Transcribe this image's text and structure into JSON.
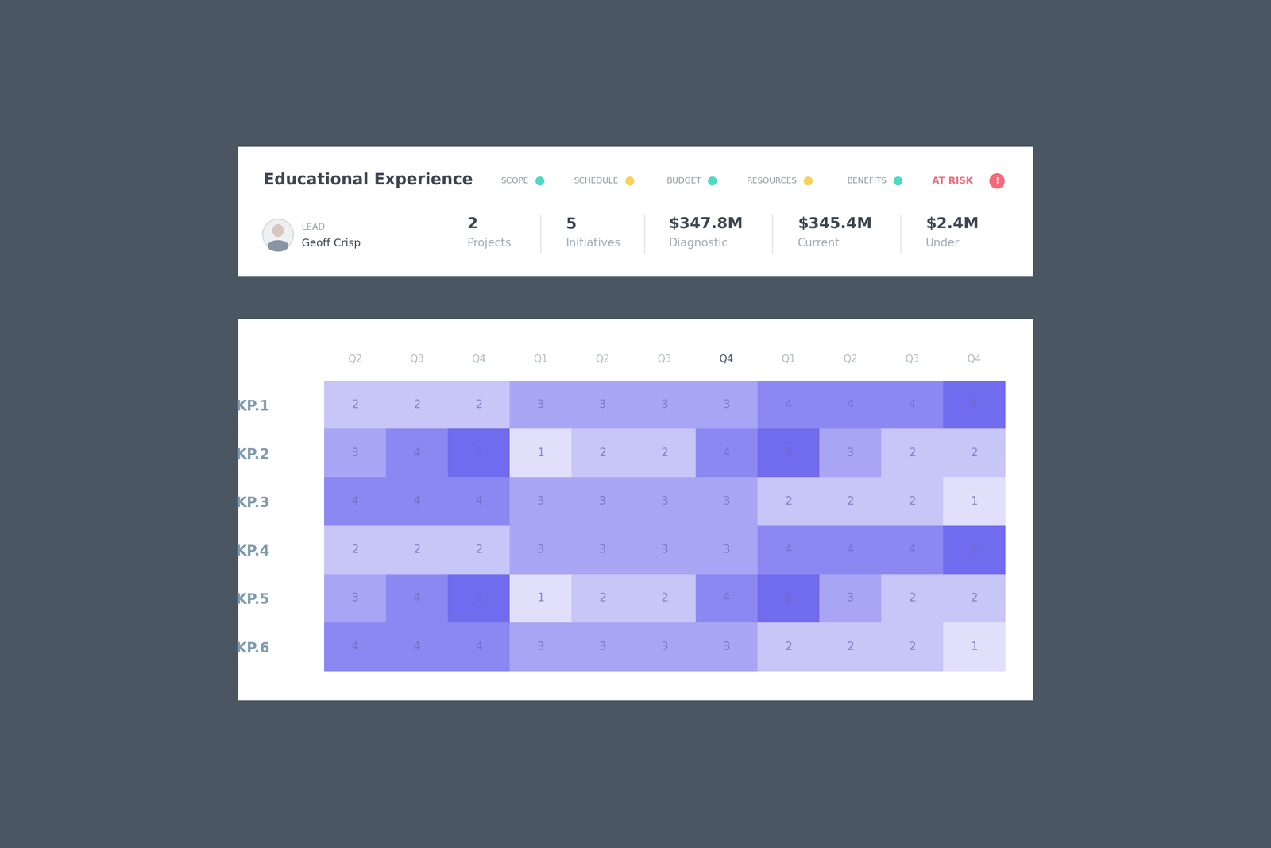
{
  "header": {
    "title": "Educational Experience",
    "status": [
      {
        "label": "SCOPE",
        "color": "#4dd9c5"
      },
      {
        "label": "SCHEDULE",
        "color": "#f8d15c"
      },
      {
        "label": "BUDGET",
        "color": "#4dd9c5"
      },
      {
        "label": "RESOURCES",
        "color": "#f8d15c"
      },
      {
        "label": "BENEFITS",
        "color": "#4dd9c5"
      }
    ],
    "risk": {
      "label": "AT RISK",
      "icon": "!",
      "color": "#f46a7a"
    },
    "lead": {
      "label": "LEAD",
      "name": "Geoff Crisp"
    },
    "stats": [
      {
        "value": 2,
        "label": "Projects"
      },
      {
        "value": 5,
        "label": "Initiatives"
      },
      {
        "value": "$347.8M",
        "label": "Diagnostic"
      },
      {
        "value": "$345.4M",
        "label": "Current"
      },
      {
        "value": "$2.4M",
        "label": "Under"
      }
    ]
  },
  "chart_data": {
    "type": "heatmap",
    "categories": [
      "Q2",
      "Q3",
      "Q4",
      "Q1",
      "Q2",
      "Q3",
      "Q4",
      "Q1",
      "Q2",
      "Q3",
      "Q4"
    ],
    "rows": [
      "KP.1",
      "KP.2",
      "KP.3",
      "KP.4",
      "KP.5",
      "KP.6"
    ],
    "cells": [
      [
        2,
        2,
        2,
        3,
        3,
        3,
        3,
        4,
        4,
        4,
        5
      ],
      [
        3,
        4,
        5,
        1,
        2,
        2,
        4,
        5,
        3,
        2,
        2
      ],
      [
        4,
        4,
        4,
        3,
        3,
        3,
        3,
        2,
        2,
        2,
        1
      ],
      [
        2,
        2,
        2,
        3,
        3,
        3,
        3,
        4,
        4,
        4,
        5
      ],
      [
        3,
        4,
        5,
        1,
        2,
        2,
        4,
        5,
        3,
        2,
        2
      ],
      [
        4,
        4,
        4,
        3,
        3,
        3,
        3,
        2,
        2,
        2,
        1
      ]
    ],
    "data_labels": true
  }
}
